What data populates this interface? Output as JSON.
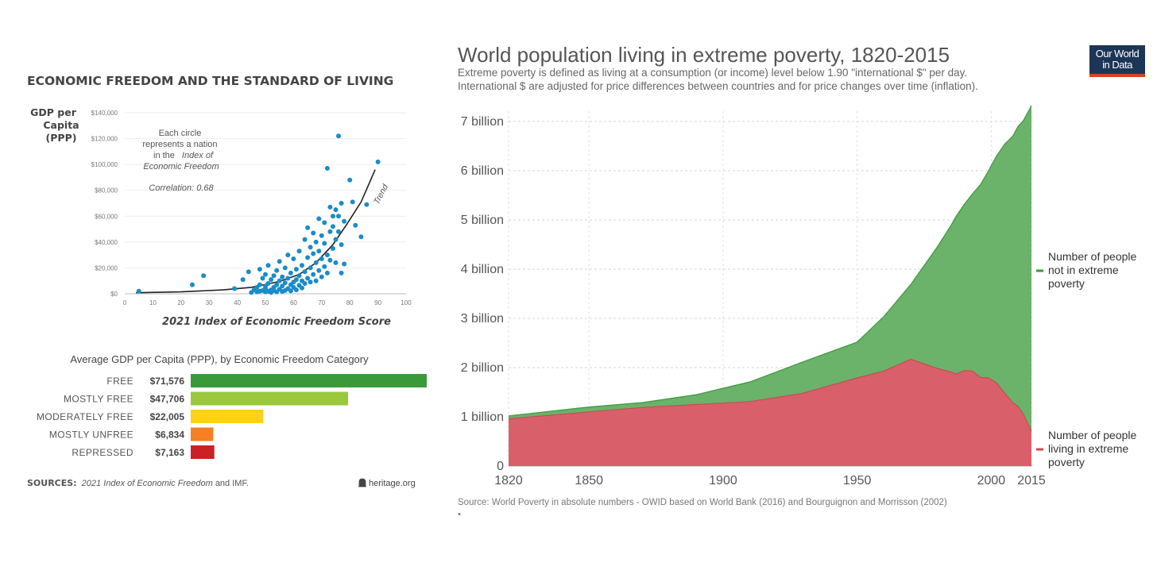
{
  "left_panel": {
    "title": "ECONOMIC FREEDOM AND THE STANDARD OF LIVING",
    "scatter_note": [
      "Each circle",
      "represents a nation",
      "in the",
      "Index of",
      "Economic Freedom"
    ],
    "correlation": "Correlation: 0.68",
    "trend_label": "Trend",
    "bar_section_title": "Average GDP per Capita (PPP), by Economic Freedom Category",
    "sources_label": "SOURCES:",
    "sources_text": "2021 Index of Economic Freedom",
    "sources_suffix": " and IMF.",
    "brand": "heritage.org"
  },
  "right_panel": {
    "title": "World population living in extreme poverty, 1820-2015",
    "subtitle_line1": "Extreme poverty is defined as living at a consumption (or income) level below 1.90 \"international $\" per day.",
    "subtitle_line2": "International $ are adjusted for price differences between countries and for price changes over time (inflation).",
    "logo_line1": "Our World",
    "logo_line2": "in Data",
    "source": "Source: World Poverty in absolute numbers - OWID based on World Bank (2016) and Bourguignon and Morrisson (2002)",
    "source_dot": "•"
  },
  "colors": {
    "scatter_point": "#1a8cc8",
    "green_area": "#6bb26b",
    "green_line": "#3a9a3a",
    "red_area": "#d9606a",
    "red_line": "#c84c52",
    "owid_navy": "#1d3557",
    "owid_red": "#d9411e"
  },
  "chart_data": [
    {
      "type": "scatter",
      "xlabel": "2021 Index of Economic Freedom Score",
      "ylabel": [
        "GDP per",
        "Capita",
        "(PPP)"
      ],
      "xlim": [
        0,
        100
      ],
      "ylim": [
        0,
        140000
      ],
      "x_ticks": [
        0,
        10,
        20,
        30,
        40,
        50,
        60,
        70,
        80,
        90,
        100
      ],
      "y_ticks": [
        0,
        20000,
        40000,
        60000,
        80000,
        100000,
        120000,
        140000
      ],
      "y_tick_labels": [
        "$0",
        "$20,000",
        "$40,000",
        "$60,000",
        "$80,000",
        "$100,000",
        "$120,000",
        "$140,000"
      ],
      "points": [
        [
          5,
          2000
        ],
        [
          24,
          7000
        ],
        [
          28,
          14000
        ],
        [
          39,
          4000
        ],
        [
          42,
          11000
        ],
        [
          44,
          17000
        ],
        [
          45,
          1000
        ],
        [
          46,
          3000
        ],
        [
          47,
          5000
        ],
        [
          47,
          1500
        ],
        [
          48,
          2000
        ],
        [
          48,
          7000
        ],
        [
          48,
          19000
        ],
        [
          49,
          2500
        ],
        [
          49,
          12000
        ],
        [
          50,
          1500
        ],
        [
          50,
          4000
        ],
        [
          50,
          6000
        ],
        [
          50,
          15000
        ],
        [
          51,
          2000
        ],
        [
          51,
          8000
        ],
        [
          51,
          22000
        ],
        [
          52,
          3000
        ],
        [
          52,
          1000
        ],
        [
          52,
          11000
        ],
        [
          53,
          5000
        ],
        [
          53,
          2500
        ],
        [
          53,
          14000
        ],
        [
          54,
          1500
        ],
        [
          54,
          7000
        ],
        [
          54,
          18000
        ],
        [
          55,
          3500
        ],
        [
          55,
          10000
        ],
        [
          55,
          25000
        ],
        [
          56,
          1800
        ],
        [
          56,
          6000
        ],
        [
          56,
          13000
        ],
        [
          57,
          2500
        ],
        [
          57,
          8500
        ],
        [
          57,
          20000
        ],
        [
          58,
          4000
        ],
        [
          58,
          12000
        ],
        [
          58,
          30000
        ],
        [
          59,
          2200
        ],
        [
          59,
          7000
        ],
        [
          59,
          16000
        ],
        [
          60,
          5000
        ],
        [
          60,
          9000
        ],
        [
          60,
          27000
        ],
        [
          61,
          3000
        ],
        [
          61,
          11000
        ],
        [
          61,
          19000
        ],
        [
          62,
          6500
        ],
        [
          62,
          14000
        ],
        [
          62,
          33000
        ],
        [
          63,
          4500
        ],
        [
          63,
          10000
        ],
        [
          63,
          22000
        ],
        [
          64,
          8000
        ],
        [
          64,
          17000
        ],
        [
          64,
          42000
        ],
        [
          65,
          12000
        ],
        [
          65,
          28000
        ],
        [
          65,
          51000
        ],
        [
          66,
          9000
        ],
        [
          66,
          20000
        ],
        [
          66,
          36000
        ],
        [
          67,
          15000
        ],
        [
          67,
          31000
        ],
        [
          67,
          47000
        ],
        [
          68,
          10000
        ],
        [
          68,
          24000
        ],
        [
          68,
          40000
        ],
        [
          69,
          18000
        ],
        [
          69,
          33000
        ],
        [
          69,
          58000
        ],
        [
          70,
          13000
        ],
        [
          70,
          27000
        ],
        [
          70,
          45000
        ],
        [
          71,
          21000
        ],
        [
          71,
          39000
        ],
        [
          71,
          55000
        ],
        [
          72,
          16000
        ],
        [
          72,
          30000
        ],
        [
          72,
          97000
        ],
        [
          73,
          26000
        ],
        [
          73,
          48000
        ],
        [
          73,
          67000
        ],
        [
          74,
          35000
        ],
        [
          74,
          52000
        ],
        [
          74,
          60000
        ],
        [
          75,
          24000
        ],
        [
          75,
          42000
        ],
        [
          75,
          65000
        ],
        [
          76,
          122000
        ],
        [
          76,
          48000
        ],
        [
          76,
          60000
        ],
        [
          77,
          16000
        ],
        [
          77,
          38000
        ],
        [
          77,
          70000
        ],
        [
          78,
          56000
        ],
        [
          78,
          23000
        ],
        [
          80,
          88000
        ],
        [
          81,
          71000
        ],
        [
          82,
          53000
        ],
        [
          84,
          44000
        ],
        [
          86,
          69000
        ],
        [
          90,
          102000
        ]
      ],
      "trend": [
        [
          4,
          800
        ],
        [
          20,
          1500
        ],
        [
          35,
          3000
        ],
        [
          45,
          5000
        ],
        [
          55,
          9500
        ],
        [
          62,
          15000
        ],
        [
          68,
          24000
        ],
        [
          74,
          38000
        ],
        [
          79,
          54000
        ],
        [
          84,
          71000
        ],
        [
          89,
          96000
        ]
      ]
    },
    {
      "type": "bar",
      "orientation": "horizontal",
      "categories": [
        "FREE",
        "MOSTLY FREE",
        "MODERATELY FREE",
        "MOSTLY UNFREE",
        "REPRESSED"
      ],
      "values": [
        71576,
        47706,
        22005,
        6834,
        7163
      ],
      "value_labels": [
        "$71,576",
        "$47,706",
        "$22,005",
        "$6,834",
        "$7,163"
      ],
      "colors": [
        "#3a9a3a",
        "#9ac83c",
        "#fcd116",
        "#f47f24",
        "#cc2027"
      ]
    },
    {
      "type": "area",
      "stacked": true,
      "title": "World population living in extreme poverty, 1820-2015",
      "xlim": [
        1820,
        2015
      ],
      "ylim": [
        0,
        7000000000
      ],
      "x_ticks": [
        1820,
        1850,
        1900,
        1950,
        2000,
        2015
      ],
      "y_ticks": [
        0,
        1000000000,
        2000000000,
        3000000000,
        4000000000,
        5000000000,
        6000000000,
        7000000000
      ],
      "y_tick_labels": [
        "0",
        "1 billion",
        "2 billion",
        "3 billion",
        "4 billion",
        "5 billion",
        "6 billion",
        "7 billion"
      ],
      "x": [
        1820,
        1850,
        1870,
        1890,
        1910,
        1929,
        1950,
        1960,
        1970,
        1980,
        1985,
        1987,
        1990,
        1993,
        1996,
        1999,
        2002,
        2005,
        2008,
        2010,
        2012,
        2015
      ],
      "series": [
        {
          "name": [
            "Number of people",
            "living in extreme",
            "poverty"
          ],
          "values": [
            0.96,
            1.1,
            1.19,
            1.25,
            1.31,
            1.47,
            1.79,
            1.93,
            2.17,
            1.98,
            1.91,
            1.87,
            1.94,
            1.93,
            1.8,
            1.79,
            1.69,
            1.48,
            1.29,
            1.21,
            1.05,
            0.71
          ]
        },
        {
          "name": [
            "Number of people",
            "not in extreme",
            "poverty"
          ],
          "values": [
            0.06,
            0.1,
            0.1,
            0.2,
            0.4,
            0.63,
            0.73,
            1.11,
            1.52,
            2.48,
            2.98,
            3.21,
            3.38,
            3.6,
            3.92,
            4.21,
            4.61,
            5.06,
            5.41,
            5.69,
            5.97,
            6.61
          ]
        }
      ],
      "units": "billions"
    }
  ]
}
